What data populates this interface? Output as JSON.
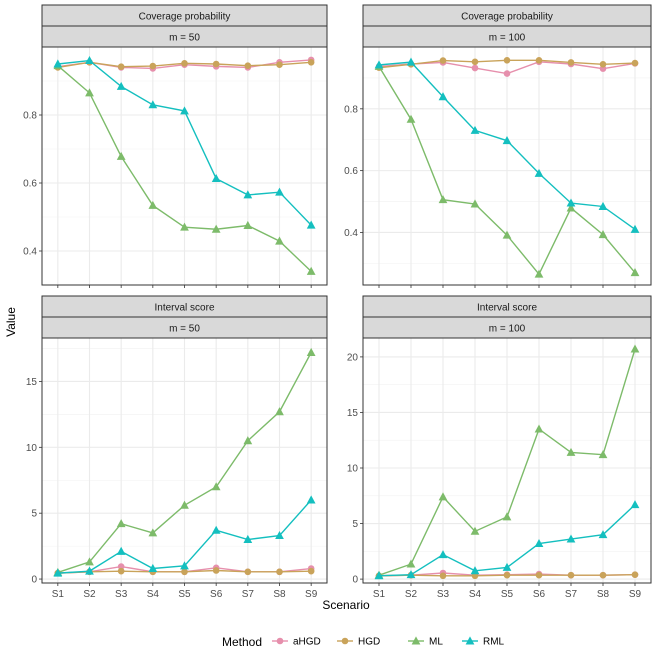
{
  "chart_data": {
    "type": "line",
    "xlabel": "Scenario",
    "ylabel": "Value",
    "categories": [
      "S1",
      "S2",
      "S3",
      "S4",
      "S5",
      "S6",
      "S7",
      "S8",
      "S9"
    ],
    "legend": {
      "title": "Method",
      "position": "bottom",
      "entries": [
        {
          "name": "aHGD",
          "color": "#E68FAC",
          "shape": "circle"
        },
        {
          "name": "HGD",
          "color": "#C9A35A",
          "shape": "circle"
        },
        {
          "name": "ML",
          "color": "#7DBB6A",
          "shape": "triangle"
        },
        {
          "name": "RML",
          "color": "#14BFBF",
          "shape": "triangle"
        }
      ]
    },
    "panels": [
      {
        "strip_top": "Coverage probability",
        "strip_bottom": "m = 50",
        "ylim": [
          0.3,
          1.0
        ],
        "yticks": [
          0.4,
          0.6,
          0.8
        ],
        "ytick_labels": [
          "0.4",
          "0.6",
          "0.8"
        ],
        "series": [
          {
            "name": "aHGD",
            "values": [
              0.942,
              0.955,
              0.94,
              0.937,
              0.948,
              0.943,
              0.94,
              0.955,
              0.962
            ]
          },
          {
            "name": "HGD",
            "values": [
              0.94,
              0.955,
              0.942,
              0.944,
              0.952,
              0.95,
              0.945,
              0.948,
              0.955
            ]
          },
          {
            "name": "ML",
            "values": [
              0.945,
              0.865,
              0.678,
              0.534,
              0.47,
              0.464,
              0.475,
              0.429,
              0.34
            ]
          },
          {
            "name": "RML",
            "values": [
              0.95,
              0.96,
              0.884,
              0.83,
              0.812,
              0.613,
              0.565,
              0.573,
              0.476
            ]
          }
        ]
      },
      {
        "strip_top": "Coverage probability",
        "strip_bottom": "m = 100",
        "ylim": [
          0.23,
          1.0
        ],
        "yticks": [
          0.4,
          0.6,
          0.8
        ],
        "ytick_labels": [
          "0.4",
          "0.6",
          "0.8"
        ],
        "series": [
          {
            "name": "aHGD",
            "values": [
              0.937,
              0.945,
              0.95,
              0.932,
              0.914,
              0.952,
              0.945,
              0.93,
              0.947
            ]
          },
          {
            "name": "HGD",
            "values": [
              0.933,
              0.944,
              0.956,
              0.952,
              0.957,
              0.957,
              0.95,
              0.944,
              0.948
            ]
          },
          {
            "name": "ML",
            "values": [
              0.937,
              0.766,
              0.506,
              0.492,
              0.391,
              0.265,
              0.479,
              0.393,
              0.27
            ]
          },
          {
            "name": "RML",
            "values": [
              0.942,
              0.951,
              0.839,
              0.73,
              0.697,
              0.591,
              0.495,
              0.484,
              0.41
            ]
          }
        ]
      },
      {
        "strip_top": "Interval score",
        "strip_bottom": "m = 50",
        "ylim": [
          -0.3,
          18.3
        ],
        "yticks": [
          0,
          5,
          10,
          15
        ],
        "ytick_labels": [
          "0",
          "5",
          "10",
          "15"
        ],
        "series": [
          {
            "name": "aHGD",
            "values": [
              0.45,
              0.55,
              0.95,
              0.55,
              0.55,
              0.85,
              0.55,
              0.55,
              0.8
            ]
          },
          {
            "name": "HGD",
            "values": [
              0.45,
              0.55,
              0.6,
              0.55,
              0.55,
              0.65,
              0.55,
              0.55,
              0.6
            ]
          },
          {
            "name": "ML",
            "values": [
              0.5,
              1.3,
              4.2,
              3.5,
              5.6,
              7.0,
              10.5,
              12.7,
              17.2
            ]
          },
          {
            "name": "RML",
            "values": [
              0.45,
              0.6,
              2.1,
              0.8,
              1.0,
              3.7,
              3.0,
              3.3,
              6.0
            ]
          }
        ]
      },
      {
        "strip_top": "Interval score",
        "strip_bottom": "m = 100",
        "ylim": [
          -0.35,
          21.7
        ],
        "yticks": [
          0,
          5,
          10,
          15,
          20
        ],
        "ytick_labels": [
          "0",
          "5",
          "10",
          "15",
          "20"
        ],
        "series": [
          {
            "name": "aHGD",
            "values": [
              0.3,
              0.35,
              0.55,
              0.35,
              0.4,
              0.45,
              0.35,
              0.35,
              0.4
            ]
          },
          {
            "name": "HGD",
            "values": [
              0.3,
              0.35,
              0.3,
              0.3,
              0.35,
              0.35,
              0.35,
              0.35,
              0.4
            ]
          },
          {
            "name": "ML",
            "values": [
              0.35,
              1.35,
              7.4,
              4.3,
              5.6,
              13.5,
              11.4,
              11.2,
              20.7
            ]
          },
          {
            "name": "RML",
            "values": [
              0.3,
              0.4,
              2.2,
              0.75,
              1.05,
              3.2,
              3.6,
              4.0,
              6.7
            ]
          }
        ]
      }
    ]
  }
}
